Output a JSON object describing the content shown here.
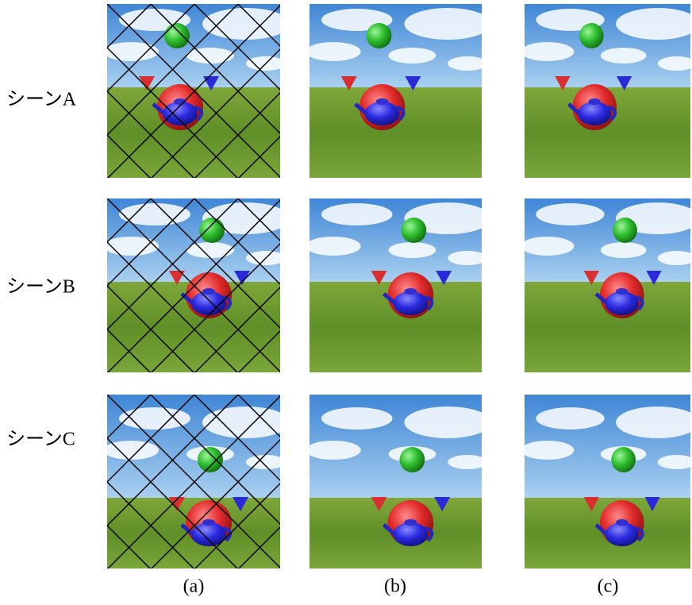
{
  "rows": [
    {
      "label": "シーンA"
    },
    {
      "label": "シーンB"
    },
    {
      "label": "シーンC"
    }
  ],
  "columns": [
    {
      "label": "(a)"
    },
    {
      "label": "(b)"
    },
    {
      "label": "(c)"
    }
  ]
}
